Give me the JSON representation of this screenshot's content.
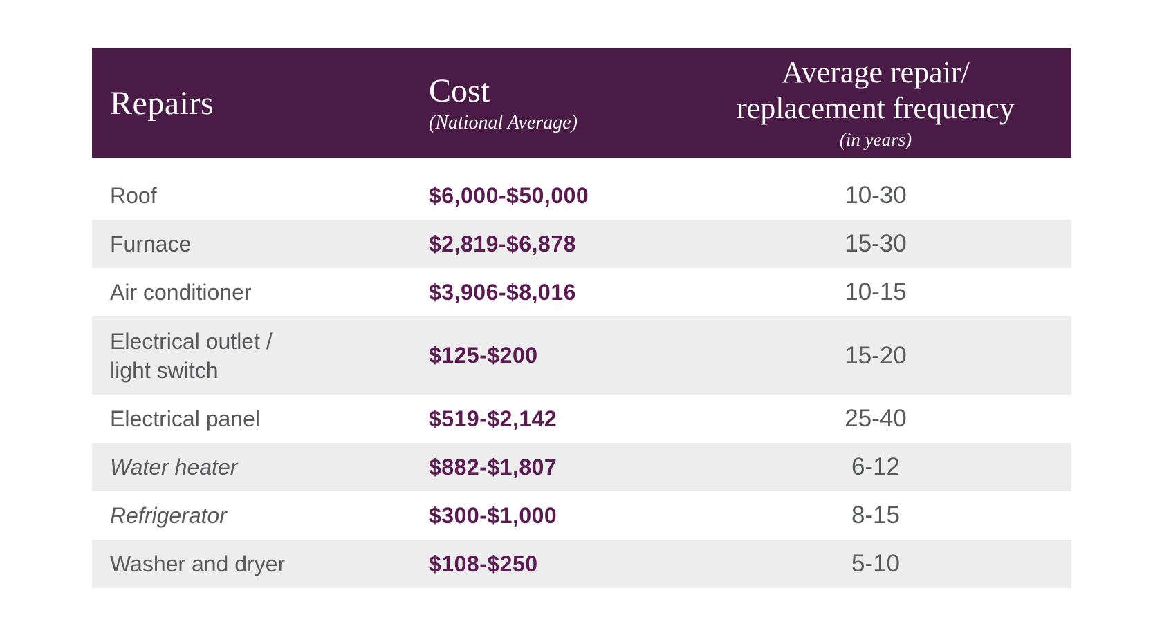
{
  "colors": {
    "page_bg": "#ffffff",
    "header_bg": "#4a1b46",
    "header_text": "#ffffff",
    "row_alt_bg": "#ededed",
    "label_text": "#58595b",
    "freq_text": "#58595b",
    "cost_text": "#5b1a52"
  },
  "table": {
    "header": {
      "repairs": {
        "label": "Repairs"
      },
      "cost": {
        "label": "Cost",
        "sublabel": "(National Average)"
      },
      "frequency": {
        "label_line1": "Average repair/",
        "label_line2": "replacement frequency",
        "sublabel": "(in years)"
      }
    },
    "rows": [
      {
        "repair": "Roof",
        "cost": "$6,000-$50,000",
        "frequency": "10-30",
        "italic": false
      },
      {
        "repair": "Furnace",
        "cost": "$2,819-$6,878",
        "frequency": "15-30",
        "italic": false
      },
      {
        "repair": "Air conditioner",
        "cost": "$3,906-$8,016",
        "frequency": "10-15",
        "italic": false
      },
      {
        "repair": "Electrical outlet /\nlight switch",
        "cost": "$125-$200",
        "frequency": "15-20",
        "italic": false
      },
      {
        "repair": "Electrical panel",
        "cost": "$519-$2,142",
        "frequency": "25-40",
        "italic": false
      },
      {
        "repair": "Water heater",
        "cost": "$882-$1,807",
        "frequency": "6-12",
        "italic": true
      },
      {
        "repair": "Refrigerator",
        "cost": "$300-$1,000",
        "frequency": "8-15",
        "italic": true
      },
      {
        "repair": "Washer and dryer",
        "cost": "$108-$250",
        "frequency": "5-10",
        "italic": false
      }
    ]
  },
  "chart_data": {
    "type": "table",
    "title": "",
    "columns": [
      "Repairs",
      "Cost (National Average)",
      "Average repair/replacement frequency (in years)"
    ],
    "rows": [
      [
        "Roof",
        "$6,000-$50,000",
        "10-30"
      ],
      [
        "Furnace",
        "$2,819-$6,878",
        "15-30"
      ],
      [
        "Air conditioner",
        "$3,906-$8,016",
        "10-15"
      ],
      [
        "Electrical outlet / light switch",
        "$125-$200",
        "15-20"
      ],
      [
        "Electrical panel",
        "$519-$2,142",
        "25-40"
      ],
      [
        "Water heater",
        "$882-$1,807",
        "6-12"
      ],
      [
        "Refrigerator",
        "$300-$1,000",
        "8-15"
      ],
      [
        "Washer and dryer",
        "$108-$250",
        "5-10"
      ]
    ],
    "layout": {
      "zebra_striping": true,
      "first_row_bg": "white",
      "header_style": "dark-purple serif, white text",
      "column_alignment": [
        "left",
        "left",
        "center"
      ]
    }
  }
}
